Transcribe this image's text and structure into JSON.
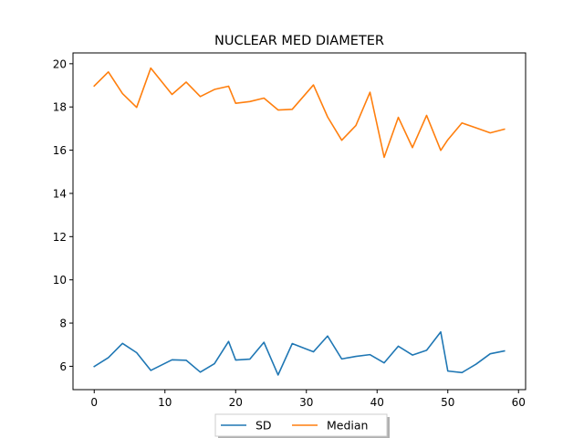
{
  "chart_data": {
    "type": "line",
    "title": "NUCLEAR MED DIAMETER",
    "xlabel": "",
    "ylabel": "",
    "xlim": [
      -3,
      61
    ],
    "ylim": [
      4.92,
      20.5
    ],
    "xticks": [
      0,
      10,
      20,
      30,
      40,
      50,
      60
    ],
    "yticks": [
      6,
      8,
      10,
      12,
      14,
      16,
      18,
      20
    ],
    "grid": false,
    "legend_position": "bottom-center",
    "series": [
      {
        "name": "SD",
        "color": "#1f77b4",
        "x": [
          0,
          2,
          4,
          6,
          8,
          11,
          13,
          15,
          17,
          19,
          20,
          22,
          24,
          26,
          28,
          31,
          33,
          35,
          37,
          39,
          41,
          43,
          45,
          47,
          49,
          50,
          52,
          54,
          56,
          58
        ],
        "y": [
          5.99,
          6.4,
          7.06,
          6.63,
          5.81,
          6.3,
          6.28,
          5.73,
          6.12,
          7.15,
          6.29,
          6.33,
          7.11,
          5.6,
          7.05,
          6.67,
          7.4,
          6.34,
          6.46,
          6.54,
          6.16,
          6.93,
          6.52,
          6.74,
          7.59,
          5.78,
          5.71,
          6.1,
          6.58,
          6.71
        ]
      },
      {
        "name": "Median",
        "color": "#ff7f0e",
        "x": [
          0,
          2,
          4,
          6,
          8,
          11,
          13,
          15,
          17,
          19,
          20,
          22,
          24,
          26,
          28,
          31,
          33,
          35,
          37,
          39,
          41,
          43,
          45,
          47,
          49,
          50,
          52,
          54,
          56,
          58
        ],
        "y": [
          18.97,
          19.62,
          18.62,
          17.98,
          19.8,
          18.58,
          19.15,
          18.48,
          18.81,
          18.96,
          18.17,
          18.25,
          18.41,
          17.86,
          17.89,
          19.02,
          17.54,
          16.46,
          17.14,
          18.68,
          15.67,
          17.52,
          16.12,
          17.61,
          15.99,
          16.48,
          17.26,
          17.03,
          16.8,
          16.97
        ]
      }
    ]
  }
}
